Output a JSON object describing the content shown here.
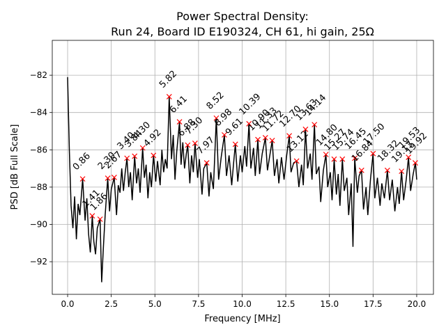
{
  "chart_data": {
    "type": "line",
    "title": [
      "Power Spectral Density:",
      "Run 24, Board ID E190324, CH 61, hi gain, 25Ω"
    ],
    "xlabel": "Frequency [MHz]",
    "ylabel": "PSD [dB Full Scale]",
    "color": "#000000",
    "x": [
      0.0,
      0.1,
      0.2,
      0.3,
      0.4,
      0.5,
      0.6,
      0.7,
      0.86,
      1.0,
      1.1,
      1.2,
      1.3,
      1.41,
      1.5,
      1.6,
      1.7,
      1.86,
      1.95,
      2.05,
      2.15,
      2.3,
      2.4,
      2.5,
      2.67,
      2.8,
      2.9,
      3.0,
      3.1,
      3.2,
      3.3,
      3.4,
      3.5,
      3.6,
      3.7,
      3.84,
      3.95,
      4.05,
      4.15,
      4.3,
      4.4,
      4.5,
      4.6,
      4.7,
      4.8,
      4.92,
      5.05,
      5.15,
      5.3,
      5.4,
      5.5,
      5.6,
      5.7,
      5.82,
      5.95,
      6.05,
      6.15,
      6.25,
      6.41,
      6.5,
      6.6,
      6.7,
      6.8,
      6.88,
      7.0,
      7.1,
      7.2,
      7.3,
      7.45,
      7.55,
      7.7,
      7.8,
      7.97,
      8.1,
      8.2,
      8.35,
      8.52,
      8.65,
      8.8,
      8.98,
      9.1,
      9.25,
      9.4,
      9.5,
      9.61,
      9.75,
      9.9,
      10.0,
      10.15,
      10.25,
      10.39,
      10.5,
      10.65,
      10.75,
      10.9,
      11.0,
      11.15,
      11.33,
      11.45,
      11.6,
      11.72,
      11.85,
      12.0,
      12.1,
      12.25,
      12.4,
      12.55,
      12.7,
      12.8,
      12.95,
      13.12,
      13.25,
      13.4,
      13.5,
      13.63,
      13.75,
      13.9,
      14.0,
      14.14,
      14.25,
      14.4,
      14.5,
      14.65,
      14.8,
      14.9,
      15.05,
      15.15,
      15.27,
      15.4,
      15.5,
      15.6,
      15.74,
      15.85,
      16.0,
      16.1,
      16.25,
      16.35,
      16.45,
      16.6,
      16.7,
      16.84,
      16.95,
      17.1,
      17.2,
      17.35,
      17.5,
      17.6,
      17.75,
      17.9,
      18.0,
      18.15,
      18.32,
      18.45,
      18.6,
      18.75,
      18.9,
      19.0,
      19.13,
      19.25,
      19.4,
      19.53,
      19.65,
      19.8,
      19.92,
      20.0
    ],
    "y": [
      -82.1,
      -86,
      -89,
      -90.2,
      -88.5,
      -90.8,
      -88.9,
      -89.5,
      -87.56,
      -89.8,
      -88.6,
      -90.5,
      -91.5,
      -89.54,
      -90.9,
      -91.6,
      -90.2,
      -89.72,
      -93.1,
      -91.2,
      -89.5,
      -87.52,
      -89.3,
      -88.1,
      -87.48,
      -89.5,
      -87.9,
      -88.3,
      -87.0,
      -88.2,
      -87.2,
      -86.45,
      -88.0,
      -87.2,
      -88.7,
      -86.34,
      -87.8,
      -87.0,
      -88.3,
      -85.9,
      -87.5,
      -86.8,
      -88.6,
      -87.2,
      -88.0,
      -86.3,
      -87.7,
      -86.6,
      -87.9,
      -86.0,
      -87.2,
      -86.5,
      -87.0,
      -83.15,
      -86.5,
      -85.2,
      -87.6,
      -86.1,
      -84.5,
      -86.8,
      -85.6,
      -87.0,
      -86.2,
      -85.75,
      -87.8,
      -86.3,
      -87.2,
      -85.65,
      -87.5,
      -86.5,
      -88.4,
      -87.0,
      -86.7,
      -88.5,
      -87.2,
      -88.1,
      -84.3,
      -87.6,
      -86.4,
      -85.2,
      -87.4,
      -86.3,
      -87.9,
      -86.8,
      -85.7,
      -87.7,
      -86.3,
      -87.2,
      -85.8,
      -86.9,
      -84.6,
      -87.0,
      -85.9,
      -87.4,
      -85.45,
      -87.3,
      -86.2,
      -85.35,
      -87.1,
      -86.2,
      -85.5,
      -87.4,
      -86.5,
      -87.8,
      -86.4,
      -87.6,
      -86.3,
      -85.25,
      -87.2,
      -86.7,
      -86.6,
      -88.0,
      -86.8,
      -87.9,
      -84.9,
      -87.0,
      -86.2,
      -87.6,
      -84.65,
      -87.3,
      -86.9,
      -88.8,
      -87.1,
      -86.25,
      -88.0,
      -87.2,
      -88.7,
      -86.5,
      -88.4,
      -87.3,
      -89.0,
      -86.5,
      -88.2,
      -87.5,
      -89.5,
      -87.8,
      -91.2,
      -86.45,
      -88.3,
      -87.4,
      -87.1,
      -89.2,
      -88.0,
      -89.5,
      -87.6,
      -86.2,
      -88.6,
      -87.5,
      -89.0,
      -87.8,
      -88.6,
      -87.1,
      -88.7,
      -87.6,
      -89.3,
      -88.0,
      -88.9,
      -87.15,
      -88.7,
      -87.6,
      -86.4,
      -88.2,
      -87.3,
      -86.7,
      -87.6
    ],
    "peaks": {
      "color": "#ff0000",
      "marker": "x",
      "x": [
        0.86,
        1.41,
        1.86,
        2.3,
        2.67,
        3.4,
        3.84,
        4.3,
        4.92,
        5.82,
        6.41,
        6.88,
        7.3,
        7.97,
        8.52,
        8.98,
        9.61,
        10.39,
        10.9,
        11.33,
        11.72,
        12.7,
        13.12,
        13.63,
        14.14,
        14.8,
        15.27,
        15.74,
        16.45,
        16.84,
        17.5,
        18.32,
        19.13,
        19.53,
        19.92
      ],
      "y": [
        -87.56,
        -89.54,
        -89.72,
        -87.52,
        -87.48,
        -86.45,
        -86.34,
        -85.9,
        -86.3,
        -83.15,
        -84.5,
        -85.75,
        -85.65,
        -86.7,
        -84.3,
        -85.2,
        -85.7,
        -84.6,
        -85.45,
        -85.35,
        -85.5,
        -85.25,
        -86.6,
        -84.9,
        -84.65,
        -86.25,
        -86.5,
        -86.5,
        -86.45,
        -87.1,
        -86.2,
        -87.1,
        -87.15,
        -86.4,
        -86.7
      ],
      "labels": [
        "0.86",
        "1.41",
        "1.86",
        "2.30",
        "2.67",
        "3.40",
        "3.84",
        "4.30",
        "4.92",
        "5.82",
        "6.41",
        "6.88",
        "7.30",
        "7.97",
        "8.52",
        "8.98",
        "9.61",
        "10.39",
        "10.90",
        "11.33",
        "11.72",
        "12.70",
        "13.12",
        "13.63",
        "14.14",
        "14.80",
        "15.27",
        "15.74",
        "16.45",
        "16.84",
        "17.50",
        "18.32",
        "19.13",
        "19.53",
        "19.92"
      ]
    },
    "xlim": [
      -0.88,
      20.96
    ],
    "ylim": [
      -93.75,
      -80.13
    ],
    "xticks": [
      {
        "value": 0,
        "label": "0.0"
      },
      2.5,
      {
        "value": 5,
        "label": "5.0"
      },
      7.5,
      {
        "value": 10,
        "label": "10.0"
      },
      12.5,
      {
        "value": 15,
        "label": "15.0"
      },
      17.5,
      {
        "value": 20,
        "label": "20.0"
      }
    ],
    "yticks": [
      {
        "value": -92,
        "label": "−92"
      },
      {
        "value": -90,
        "label": "−90"
      },
      {
        "value": -88,
        "label": "−88"
      },
      {
        "value": -86,
        "label": "−86"
      },
      {
        "value": -84,
        "label": "−84"
      },
      {
        "value": -82,
        "label": "−82"
      }
    ],
    "grid": true
  }
}
